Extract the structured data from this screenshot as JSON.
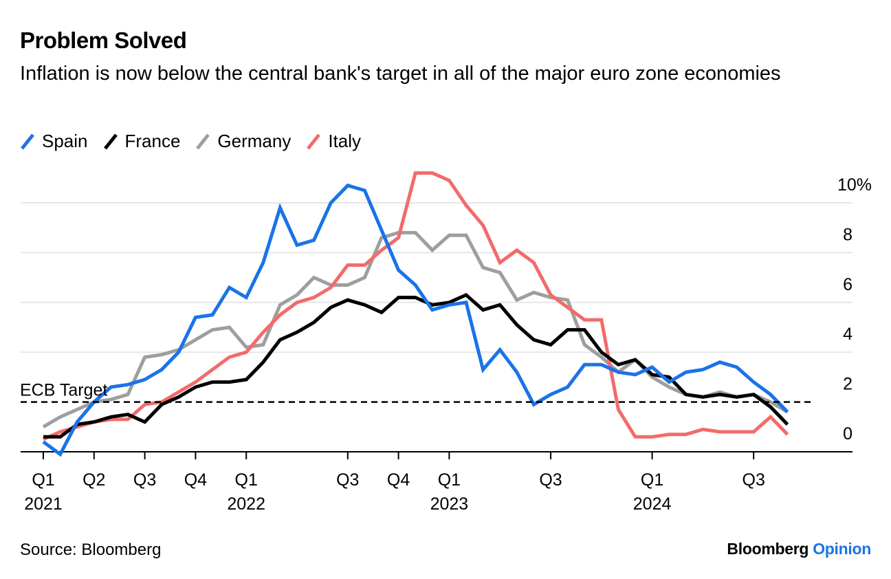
{
  "header": {
    "title": "Problem Solved",
    "subtitle": "Inflation is now below the central bank's target in all of the major euro zone economies"
  },
  "footer": {
    "source": "Source: Bloomberg",
    "brand_main": "Bloomberg",
    "brand_accent": "Opinion"
  },
  "colors": {
    "Spain": "#1a73e8",
    "France": "#000000",
    "Germany": "#9e9e9e",
    "Italy": "#f26b6b",
    "grid": "#e6e6e6",
    "brand_accent": "#1a73e8"
  },
  "chart_data": {
    "type": "line",
    "title": "Problem Solved",
    "subtitle": "Inflation is now below the central bank's target in all of the major euro zone economies",
    "xlabel": "",
    "ylabel": "",
    "y_unit": "%",
    "ylim": [
      0,
      10
    ],
    "yticks": [
      0,
      2,
      4,
      6,
      8,
      10
    ],
    "ytick_labels": [
      "0",
      "2",
      "4",
      "6",
      "8",
      "10%"
    ],
    "y_axis_side": "right",
    "grid": true,
    "legend_position": "top-left",
    "x_start": "2021-01",
    "x_frequency": "monthly",
    "x_ticks": [
      {
        "month_index": 0,
        "label": "Q1",
        "year": "2021"
      },
      {
        "month_index": 3,
        "label": "Q2",
        "year": ""
      },
      {
        "month_index": 6,
        "label": "Q3",
        "year": ""
      },
      {
        "month_index": 9,
        "label": "Q4",
        "year": ""
      },
      {
        "month_index": 12,
        "label": "Q1",
        "year": "2022"
      },
      {
        "month_index": 18,
        "label": "Q3",
        "year": ""
      },
      {
        "month_index": 21,
        "label": "Q4",
        "year": ""
      },
      {
        "month_index": 24,
        "label": "Q1",
        "year": "2023"
      },
      {
        "month_index": 30,
        "label": "Q3",
        "year": ""
      },
      {
        "month_index": 36,
        "label": "Q1",
        "year": "2024"
      },
      {
        "month_index": 42,
        "label": "Q3",
        "year": ""
      }
    ],
    "x_max_index": 46,
    "annotations": [
      {
        "type": "hline",
        "y": 2,
        "label": "ECB Target",
        "style": "dashed"
      }
    ],
    "series": [
      {
        "name": "Spain",
        "values": [
          0.4,
          -0.1,
          1.2,
          2.0,
          2.6,
          2.7,
          2.9,
          3.3,
          4.0,
          5.4,
          5.5,
          6.6,
          6.2,
          7.6,
          9.8,
          8.3,
          8.5,
          10.0,
          10.7,
          10.5,
          8.9,
          7.3,
          6.7,
          5.7,
          5.9,
          6.0,
          3.3,
          4.1,
          3.2,
          1.9,
          2.3,
          2.6,
          3.5,
          3.5,
          3.2,
          3.1,
          3.4,
          2.8,
          3.2,
          3.3,
          3.6,
          3.4,
          2.8,
          2.3,
          1.6
        ]
      },
      {
        "name": "France",
        "values": [
          0.6,
          0.6,
          1.1,
          1.2,
          1.4,
          1.5,
          1.2,
          1.9,
          2.2,
          2.6,
          2.8,
          2.8,
          2.9,
          3.6,
          4.5,
          4.8,
          5.2,
          5.8,
          6.1,
          5.9,
          5.6,
          6.2,
          6.2,
          5.9,
          6.0,
          6.3,
          5.7,
          5.9,
          5.1,
          4.5,
          4.3,
          4.9,
          4.9,
          4.0,
          3.5,
          3.7,
          3.1,
          3.0,
          2.3,
          2.2,
          2.3,
          2.2,
          2.3,
          1.8,
          1.1
        ]
      },
      {
        "name": "Germany",
        "values": [
          1.0,
          1.4,
          1.7,
          2.0,
          2.1,
          2.3,
          3.8,
          3.9,
          4.1,
          4.5,
          4.9,
          5.0,
          4.2,
          4.3,
          5.9,
          6.3,
          7.0,
          6.7,
          6.7,
          7.0,
          8.6,
          8.8,
          8.8,
          8.1,
          8.7,
          8.7,
          7.4,
          7.2,
          6.1,
          6.4,
          6.2,
          6.1,
          4.3,
          3.8,
          3.2,
          3.7,
          3.0,
          2.6,
          2.3,
          2.2,
          2.4,
          2.2,
          2.3,
          2.0,
          1.6
        ]
      },
      {
        "name": "Italy",
        "values": [
          0.5,
          0.8,
          1.0,
          1.2,
          1.3,
          1.3,
          1.9,
          2.0,
          2.4,
          2.8,
          3.3,
          3.8,
          4.0,
          4.8,
          5.5,
          6.0,
          6.2,
          6.6,
          7.5,
          7.5,
          8.1,
          8.6,
          11.2,
          11.2,
          10.9,
          9.9,
          9.1,
          7.6,
          8.1,
          7.6,
          6.3,
          5.8,
          5.3,
          5.3,
          1.7,
          0.6,
          0.6,
          0.7,
          0.7,
          0.9,
          0.8,
          0.8,
          0.8,
          1.4,
          0.7
        ]
      }
    ]
  }
}
